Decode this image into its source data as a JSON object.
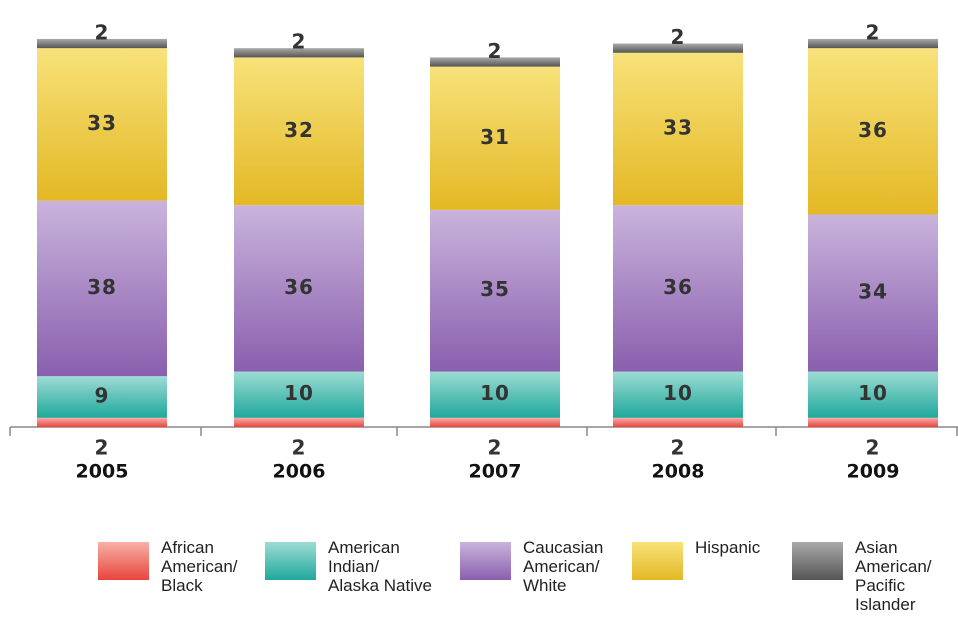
{
  "chart_data": {
    "type": "bar",
    "stacked": true,
    "categories": [
      "2005",
      "2006",
      "2007",
      "2008",
      "2009"
    ],
    "series": [
      {
        "name": "African American/ Black",
        "values": [
          2,
          2,
          2,
          2,
          2
        ],
        "color": "#e8453c",
        "colorLight": "#f7b0a8",
        "labelPosition": "below-axis"
      },
      {
        "name": "American Indian/ Alaska Native",
        "values": [
          9,
          10,
          10,
          10,
          10
        ],
        "color": "#1fa89c",
        "colorLight": "#9ddcd4"
      },
      {
        "name": "Caucasian American/ White",
        "values": [
          38,
          36,
          35,
          36,
          34
        ],
        "color": "#8a5fae",
        "colorLight": "#c9b4dc"
      },
      {
        "name": "Hispanic",
        "values": [
          33,
          32,
          31,
          33,
          36
        ],
        "color": "#e3b824",
        "colorLight": "#f8e27a"
      },
      {
        "name": "Asian American/ Pacific Islander",
        "values": [
          2,
          2,
          2,
          2,
          2
        ],
        "color": "#555555",
        "colorLight": "#aaaaaa",
        "labelPosition": "above-bar"
      }
    ],
    "title": "",
    "xlabel": "",
    "ylabel": "",
    "legend_position": "bottom",
    "grid": false
  },
  "legend": [
    {
      "label": "African\nAmerican/\nBlack",
      "color": "#e8453c",
      "colorLight": "#f7b0a8"
    },
    {
      "label": "American\nIndian/\nAlaska Native",
      "color": "#1fa89c",
      "colorLight": "#9ddcd4"
    },
    {
      "label": "Caucasian\nAmerican/\nWhite",
      "color": "#8a5fae",
      "colorLight": "#c9b4dc"
    },
    {
      "label": "Hispanic",
      "color": "#e3b824",
      "colorLight": "#f8e27a"
    },
    {
      "label": "Asian\nAmerican/\nPacific\nIslander",
      "color": "#555555",
      "colorLight": "#aaaaaa"
    }
  ]
}
